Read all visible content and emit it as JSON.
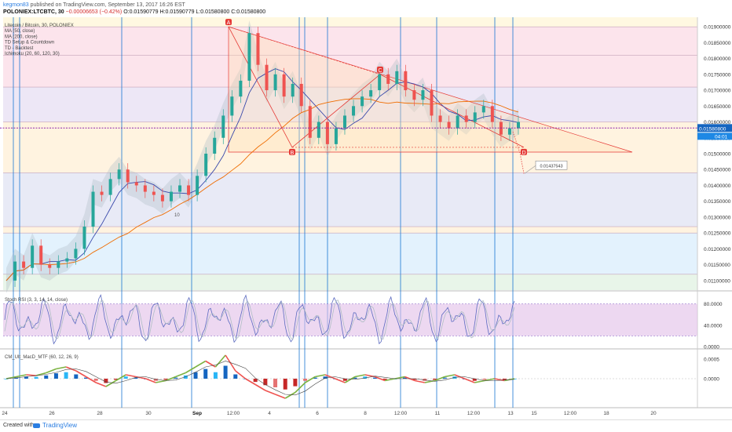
{
  "header": {
    "user": "kegmon83",
    "published": " published on TradingView.com, September 13, 2017 16:26 EST",
    "symbol": "POLONIEX:LTCBTC, 30",
    "change": "−0.00006653 (−0.42%)",
    "ohlc": "O:0.01590779 H:0.01590779 L:0.01580800 C:0.01580800"
  },
  "legend": [
    "Litecoin / Bitcoin, 30, POLONIEX",
    "MA (50, close)",
    "MA (200, close)",
    "TD Setup & Countdown",
    "TD - Backtest",
    "Ichimoku (20, 60, 120, 30)"
  ],
  "footer": {
    "created_with": "Created with",
    "brand": "TradingView"
  },
  "colors": {
    "up": "#26a69a",
    "down": "#ef5350",
    "pattern": "#e53935",
    "vline": "#1976d2",
    "price_line": "#8e24aa",
    "rsi_band": "#e1bee7",
    "macd_line": "#7cb342",
    "macd_down": "#ef5350",
    "macd_hist_up": "#1565c0"
  },
  "chart_data": [
    {
      "type": "candlestick",
      "title": "Litecoin / Bitcoin, 30, POLONIEX",
      "x_ticks": [
        "24",
        "26",
        "28",
        "30",
        "Sep",
        "12:00",
        "4",
        "6",
        "8",
        "12:00",
        "11",
        "12:00",
        "13",
        "15",
        "12:00",
        "18",
        "20"
      ],
      "ylim": [
        0.0107,
        0.0193
      ],
      "y_ticks": [
        "0.01900000",
        "0.01850000",
        "0.01800000",
        "0.01750000",
        "0.01700000",
        "0.01650000",
        "0.01600000",
        "0.01550000",
        "0.01500000",
        "0.01450000",
        "0.01400000",
        "0.01350000",
        "0.01300000",
        "0.01250000",
        "0.01200000",
        "0.01150000",
        "0.01100000"
      ],
      "last_price": "0.01580800",
      "countdown": "04:01",
      "target_label": "0.01437543",
      "close_series": [
        0.011,
        0.0116,
        0.0114,
        0.0121,
        0.0115,
        0.0114,
        0.0116,
        0.0117,
        0.012,
        0.0127,
        0.0138,
        0.0137,
        0.0142,
        0.0145,
        0.0141,
        0.014,
        0.0138,
        0.0137,
        0.0135,
        0.0138,
        0.014,
        0.0137,
        0.0143,
        0.015,
        0.0155,
        0.0162,
        0.0168,
        0.0173,
        0.0188,
        0.0178,
        0.017,
        0.0175,
        0.0168,
        0.0172,
        0.0165,
        0.0155,
        0.016,
        0.0153,
        0.0158,
        0.0162,
        0.0165,
        0.0168,
        0.017,
        0.0175,
        0.0172,
        0.0176,
        0.017,
        0.0167,
        0.017,
        0.0162,
        0.016,
        0.0158,
        0.0162,
        0.016,
        0.0163,
        0.0165,
        0.016,
        0.0156,
        0.0158,
        0.016
      ],
      "pattern_points": [
        {
          "label": "A",
          "date": "Sep 1",
          "value": 0.019
        },
        {
          "label": "B",
          "date": "Sep 4",
          "value": 0.0152
        },
        {
          "label": "C",
          "date": "Sep 8",
          "value": 0.0175
        },
        {
          "label": "D",
          "date": "Sep 13",
          "value": 0.0152
        }
      ],
      "projection_label": "10"
    },
    {
      "type": "line",
      "title": "Stoch RSI (3, 3, 14, 14, close)",
      "ylim": [
        0,
        100
      ],
      "y_ticks": [
        "80.0000",
        "40.0000",
        "0.0000"
      ],
      "bands": [
        20,
        80
      ]
    },
    {
      "type": "bar",
      "title": "CM_Ult_MacD_MTF (60, 12, 26, 9)",
      "ylim": [
        -0.0007,
        0.0007
      ],
      "y_ticks": [
        "0.0005",
        "0.0000"
      ],
      "macd_series": [
        0.0,
        5e-05,
        0.0001,
        8e-05,
        0.00015,
        0.00025,
        0.0003,
        0.0002,
        5e-05,
        -0.0001,
        -0.0002,
        -5e-05,
        0.0001,
        5e-05,
        0.0,
        -0.0001,
        -5e-05,
        5e-05,
        0.00015,
        0.0003,
        0.00045,
        0.0003,
        0.0006,
        0.0002,
        0.0,
        -0.00015,
        -0.0003,
        -0.0004,
        -0.0005,
        -0.00035,
        -0.0001,
        5e-05,
        0.0001,
        0.0,
        -0.0001,
        5e-05,
        0.0001,
        5e-05,
        -5e-05,
        0.0,
        5e-05,
        -5e-05,
        -0.0001,
        -5e-05,
        5e-05,
        0.0001,
        0.0,
        -0.0001,
        -5e-05,
        0.0,
        -5e-05,
        0.0
      ]
    }
  ]
}
